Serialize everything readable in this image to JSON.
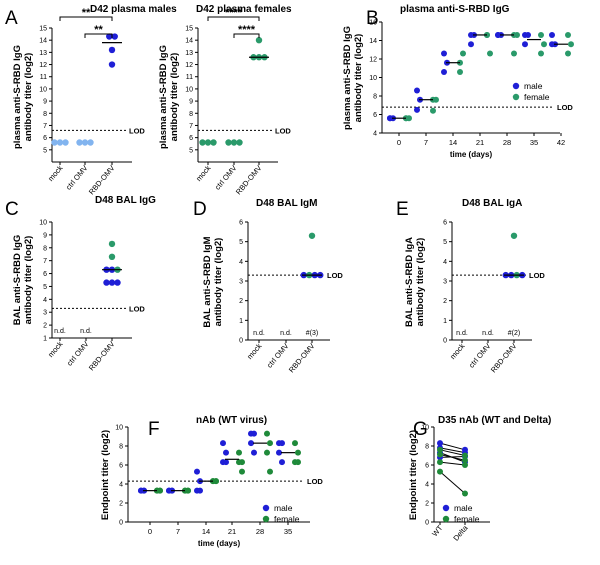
{
  "colors": {
    "male": "#1f1fd6",
    "female": "#2a9a6a",
    "green": "#1f8a3a",
    "mock": "#82b4ef",
    "ctrl": "#82b4ef",
    "axis": "#000000"
  },
  "chart_data": [
    {
      "panel": "A",
      "title": "D42 plasma males",
      "type": "scatter",
      "ylabel": "plasma anti-S-RBD IgG\nantibody titer (log2)",
      "categories": [
        "mock",
        "ctrl OMV",
        "RBD-OMV"
      ],
      "ylim": [
        4,
        15
      ],
      "yticks": [
        5,
        6,
        7,
        8,
        9,
        10,
        11,
        12,
        13,
        14,
        15
      ],
      "lod": 6.6,
      "lod_label": "LOD",
      "significance": [
        {
          "label": "**",
          "from": 0,
          "to": 2
        },
        {
          "label": "**",
          "from": 1,
          "to": 2
        }
      ],
      "points": [
        {
          "cat": 0,
          "y": 5.6,
          "g": "mock"
        },
        {
          "cat": 0,
          "y": 5.6,
          "g": "mock"
        },
        {
          "cat": 0,
          "y": 5.6,
          "g": "mock"
        },
        {
          "cat": 1,
          "y": 5.6,
          "g": "ctrl"
        },
        {
          "cat": 1,
          "y": 5.6,
          "g": "ctrl"
        },
        {
          "cat": 1,
          "y": 5.6,
          "g": "ctrl"
        },
        {
          "cat": 2,
          "y": 14.3,
          "g": "male"
        },
        {
          "cat": 2,
          "y": 14.3,
          "g": "male"
        },
        {
          "cat": 2,
          "y": 13.2,
          "g": "male"
        },
        {
          "cat": 2,
          "y": 12.0,
          "g": "male"
        }
      ],
      "medians": [
        {
          "cat": 2,
          "y": 13.8
        }
      ]
    },
    {
      "panel": "",
      "title": "D42 plasma females",
      "type": "scatter",
      "ylabel": "plasma anti-S-RBD IgG\nantibody titer (log2)",
      "categories": [
        "mock",
        "ctrl OMV",
        "RBD-OMV"
      ],
      "ylim": [
        4,
        15
      ],
      "yticks": [
        5,
        6,
        7,
        8,
        9,
        10,
        11,
        12,
        13,
        14,
        15
      ],
      "lod": 6.6,
      "lod_label": "LOD",
      "significance": [
        {
          "label": "****",
          "from": 0,
          "to": 2
        },
        {
          "label": "****",
          "from": 1,
          "to": 2
        }
      ],
      "points": [
        {
          "cat": 0,
          "y": 5.6,
          "g": "female"
        },
        {
          "cat": 0,
          "y": 5.6,
          "g": "female"
        },
        {
          "cat": 0,
          "y": 5.6,
          "g": "female"
        },
        {
          "cat": 1,
          "y": 5.6,
          "g": "female"
        },
        {
          "cat": 1,
          "y": 5.6,
          "g": "female"
        },
        {
          "cat": 1,
          "y": 5.6,
          "g": "female"
        },
        {
          "cat": 2,
          "y": 14.0,
          "g": "female"
        },
        {
          "cat": 2,
          "y": 12.6,
          "g": "female"
        },
        {
          "cat": 2,
          "y": 12.6,
          "g": "female"
        },
        {
          "cat": 2,
          "y": 12.6,
          "g": "female"
        }
      ],
      "medians": [
        {
          "cat": 2,
          "y": 12.6
        }
      ]
    },
    {
      "panel": "B",
      "title": "plasma anti-S-RBD IgG",
      "type": "scatter",
      "ylabel": "plasma anti-S-RBD IgG\nantibody titer (log2)",
      "xlabel": "time (days)",
      "x": [
        0,
        7,
        14,
        21,
        28,
        35,
        42
      ],
      "ylim": [
        4,
        16
      ],
      "yticks": [
        4,
        6,
        8,
        10,
        12,
        14,
        16
      ],
      "lod": 6.8,
      "lod_label": "LOD",
      "legend": [
        "male",
        "female"
      ],
      "male": [
        [
          5.6,
          5.6,
          5.6
        ],
        [
          6.5,
          7.6,
          8.6
        ],
        [
          10.6,
          11.6,
          12.6
        ],
        [
          14.6,
          14.6,
          13.6
        ],
        [
          14.6,
          14.6,
          14.6
        ],
        [
          14.6,
          14.6,
          13.6
        ],
        [
          14.6,
          13.6,
          13.6
        ]
      ],
      "female": [
        [
          5.6,
          5.6,
          5.6
        ],
        [
          6.4,
          7.6,
          7.6
        ],
        [
          11.6,
          12.6,
          10.6
        ],
        [
          14.6,
          12.6,
          14.6
        ],
        [
          14.6,
          14.6,
          12.6
        ],
        [
          14.6,
          13.6,
          12.6
        ],
        [
          14.6,
          13.6,
          12.6
        ]
      ],
      "medians": [
        5.6,
        7.6,
        11.6,
        14.6,
        14.6,
        14.1,
        13.6
      ]
    },
    {
      "panel": "C",
      "title": "D48 BAL IgG",
      "type": "scatter",
      "ylabel": "BAL anti-S-RBD IgG\nantibody titer (log2)",
      "categories": [
        "mock",
        "ctrl OMV",
        "RBD-OMV"
      ],
      "ylim": [
        1,
        10
      ],
      "yticks": [
        1,
        2,
        3,
        4,
        5,
        6,
        7,
        8,
        9,
        10
      ],
      "lod": 3.3,
      "lod_label": "LOD",
      "nd_labels": [
        "n.d.",
        "n.d."
      ],
      "points": [
        {
          "cat": 2,
          "y": 8.3,
          "g": "female"
        },
        {
          "cat": 2,
          "y": 7.3,
          "g": "female"
        },
        {
          "cat": 2,
          "y": 6.3,
          "g": "male"
        },
        {
          "cat": 2,
          "y": 6.3,
          "g": "male"
        },
        {
          "cat": 2,
          "y": 6.3,
          "g": "female"
        },
        {
          "cat": 2,
          "y": 5.3,
          "g": "male"
        },
        {
          "cat": 2,
          "y": 5.3,
          "g": "male"
        },
        {
          "cat": 2,
          "y": 5.3,
          "g": "male"
        }
      ],
      "medians": [
        {
          "cat": 2,
          "y": 6.3
        }
      ]
    },
    {
      "panel": "D",
      "title": "D48 BAL IgM",
      "type": "scatter",
      "ylabel": "BAL anti-S-RBD IgM\nantibody titer (log2)",
      "categories": [
        "mock",
        "ctrl OMV",
        "RBD-OMV"
      ],
      "ylim": [
        0,
        6
      ],
      "yticks": [
        0,
        1,
        2,
        3,
        4,
        5,
        6
      ],
      "lod": 3.3,
      "lod_label": "LOD",
      "nd_labels": [
        "n.d.",
        "n.d.",
        "#(3)"
      ],
      "points": [
        {
          "cat": 2,
          "y": 5.3,
          "g": "female"
        },
        {
          "cat": 2,
          "y": 3.3,
          "g": "male"
        },
        {
          "cat": 2,
          "y": 3.3,
          "g": "female"
        },
        {
          "cat": 2,
          "y": 3.3,
          "g": "male"
        },
        {
          "cat": 2,
          "y": 3.3,
          "g": "male"
        }
      ],
      "medians": [
        {
          "cat": 2,
          "y": 3.3
        }
      ]
    },
    {
      "panel": "E",
      "title": "D48 BAL IgA",
      "type": "scatter",
      "ylabel": "BAL anti-S-RBD IgA\nantibody titer (log2)",
      "categories": [
        "mock",
        "ctrl OMV",
        "RBD-OMV"
      ],
      "ylim": [
        0,
        6
      ],
      "yticks": [
        0,
        1,
        2,
        3,
        4,
        5,
        6
      ],
      "lod": 3.3,
      "lod_label": "LOD",
      "nd_labels": [
        "n.d.",
        "n.d.",
        "#(2)"
      ],
      "points": [
        {
          "cat": 2,
          "y": 5.3,
          "g": "female"
        },
        {
          "cat": 2,
          "y": 3.3,
          "g": "male"
        },
        {
          "cat": 2,
          "y": 3.3,
          "g": "male"
        },
        {
          "cat": 2,
          "y": 3.3,
          "g": "female"
        },
        {
          "cat": 2,
          "y": 3.3,
          "g": "male"
        }
      ],
      "medians": [
        {
          "cat": 2,
          "y": 3.3
        }
      ]
    },
    {
      "panel": "F",
      "title": "nAb (WT virus)",
      "type": "scatter",
      "ylabel": "Endpoint titer (log2)",
      "xlabel": "time (days)",
      "x": [
        0,
        7,
        14,
        21,
        28,
        35
      ],
      "ylim": [
        0,
        10
      ],
      "yticks": [
        0,
        2,
        4,
        6,
        8,
        10
      ],
      "lod": 4.3,
      "lod_label": "LOD",
      "legend": [
        "male",
        "female"
      ],
      "male": [
        [
          3.3,
          3.3,
          3.3,
          3.3
        ],
        [
          3.3,
          3.3,
          3.3,
          3.3
        ],
        [
          5.3,
          4.3,
          3.3,
          3.3
        ],
        [
          8.3,
          7.3,
          6.3,
          6.3
        ],
        [
          9.3,
          9.3,
          8.3,
          7.3
        ],
        [
          8.3,
          8.3,
          7.3,
          6.3
        ]
      ],
      "female": [
        [
          3.3,
          3.3,
          3.3,
          3.3
        ],
        [
          3.3,
          3.3,
          3.3,
          3.3
        ],
        [
          4.3,
          4.3,
          4.3,
          4.3
        ],
        [
          7.3,
          6.3,
          6.3,
          5.3
        ],
        [
          9.3,
          8.3,
          7.3,
          5.3
        ],
        [
          8.3,
          7.3,
          6.3,
          6.3
        ]
      ],
      "medians": [
        3.3,
        3.3,
        4.3,
        6.6,
        8.3,
        7.3
      ]
    },
    {
      "panel": "G",
      "title": "D35 nAb (WT and Delta)",
      "type": "paired",
      "ylabel": "Endpoint titer (log2)",
      "categories": [
        "WT",
        "Delta"
      ],
      "ylim": [
        0,
        10
      ],
      "yticks": [
        0,
        2,
        4,
        6,
        8,
        10
      ],
      "legend": [
        "male",
        "female"
      ],
      "pairs": [
        {
          "g": "male",
          "wt": 8.3,
          "delta": 7.6
        },
        {
          "g": "male",
          "wt": 7.8,
          "delta": 7.3
        },
        {
          "g": "male",
          "wt": 7.3,
          "delta": 6.3
        },
        {
          "g": "male",
          "wt": 6.8,
          "delta": 6.9
        },
        {
          "g": "female",
          "wt": 7.6,
          "delta": 7.0
        },
        {
          "g": "female",
          "wt": 7.1,
          "delta": 6.5
        },
        {
          "g": "female",
          "wt": 6.3,
          "delta": 6.0
        },
        {
          "g": "female",
          "wt": 5.3,
          "delta": 3.0
        }
      ]
    }
  ]
}
